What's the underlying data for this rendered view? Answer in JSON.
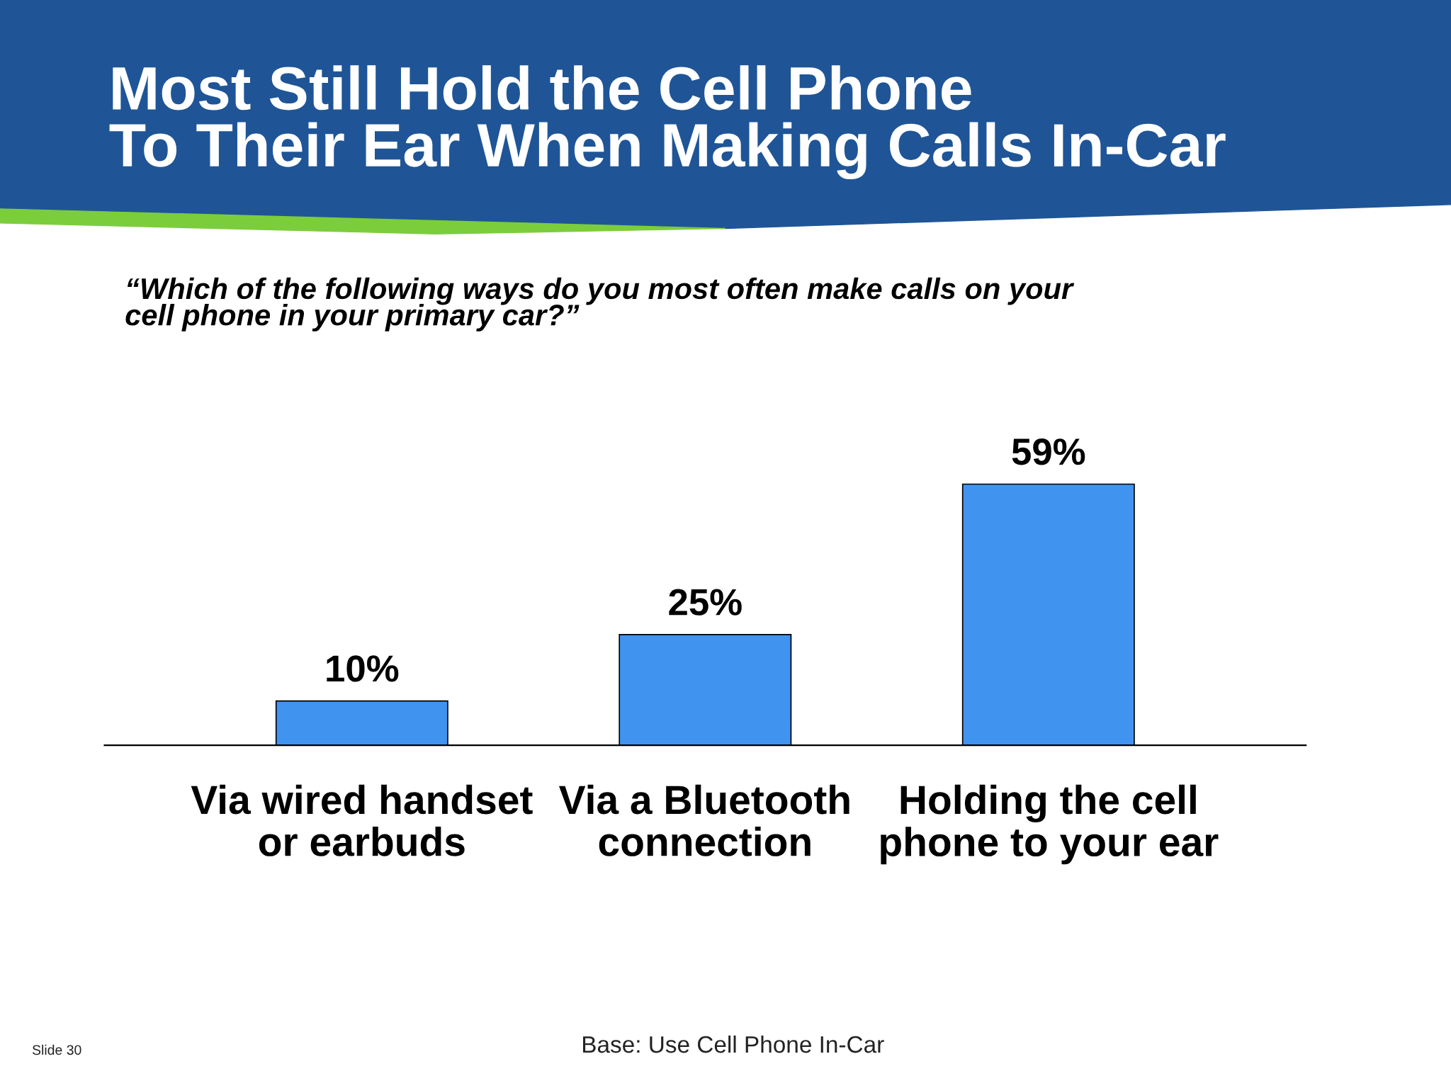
{
  "chart_data": {
    "type": "bar",
    "title": "Most Still Hold the Cell Phone\nTo Their Ear When Making Calls In-Car",
    "subtitle": "“Which of the following ways do you most often make calls on your\ncell phone in your primary car?”",
    "categories": [
      "Via wired handset\nor earbuds",
      "Via a Bluetooth\nconnection",
      "Holding the cell\nphone to your ear"
    ],
    "values": [
      10,
      25,
      59
    ],
    "color": "#4193f0",
    "data_labels": true,
    "value_labels": [
      "10%",
      "25%",
      "59%"
    ],
    "grid": false,
    "legend": false,
    "annotations": [
      "Slide 30",
      "Base: Use Cell Phone In-Car"
    ]
  }
}
